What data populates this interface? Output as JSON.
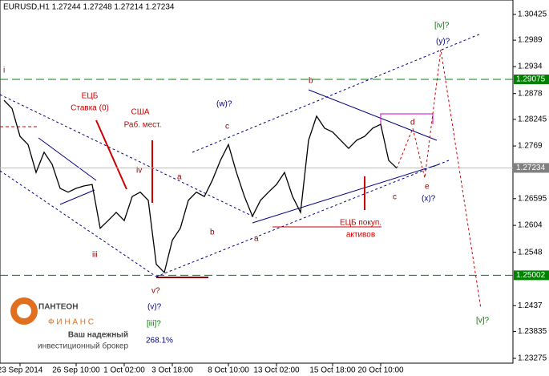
{
  "chart_data": {
    "type": "line",
    "header": "EURUSD,H1  1.27244 1.27248 1.27214 1.27234",
    "categories": [
      null,
      null,
      "23 Sep 2014",
      null,
      null,
      null,
      null,
      null,
      null,
      "26 Sep 10:00",
      null,
      null,
      null,
      null,
      null,
      "1 Oct 02:00",
      null,
      null,
      null,
      null,
      null,
      "3 Oct 18:00",
      null,
      null,
      null,
      null,
      null,
      null,
      "8 Oct 10:00",
      null,
      null,
      null,
      null,
      null,
      "13 Oct 02:00",
      null,
      null,
      null,
      null,
      null,
      null,
      "15 Oct 18:00",
      null,
      null,
      null,
      null,
      null,
      "20 Oct 10:00",
      null,
      null
    ],
    "series": [
      {
        "name": "EURUSD,H1",
        "color": "#000000",
        "values": [
          1.2864,
          1.2847,
          1.2789,
          1.2772,
          1.2714,
          1.2756,
          1.2731,
          1.2681,
          1.2673,
          1.2681,
          1.2686,
          1.2689,
          1.2598,
          1.2614,
          1.2631,
          1.2614,
          1.2664,
          1.2673,
          1.2656,
          1.2523,
          1.2506,
          1.2573,
          1.2598,
          1.2656,
          1.2673,
          1.2664,
          1.2698,
          1.2739,
          1.2772,
          1.2714,
          1.2664,
          1.2623,
          1.2656,
          1.2673,
          1.2689,
          1.2714,
          1.2664,
          1.2631,
          1.2781,
          1.2831,
          1.2806,
          1.2798,
          1.2781,
          1.2764,
          1.2781,
          1.2789,
          1.2806,
          1.2814,
          1.2739,
          1.2723
        ]
      }
    ],
    "ylim": [
      1.23175,
      1.30725
    ],
    "yticks": [
      1.30425,
      1.2989,
      1.2934,
      1.2878,
      1.28245,
      1.2769,
      1.26595,
      1.2604,
      1.2548,
      1.2437,
      1.23835,
      1.23275
    ],
    "price_labels": [
      {
        "value": 1.29075,
        "label": "1.29075",
        "color": "#008000"
      },
      {
        "value": 1.25002,
        "label": "1.25002",
        "color": "#008000"
      },
      {
        "value": 1.27234,
        "label": "1.27234",
        "color": "#808080"
      }
    ],
    "annotations": [
      "i",
      "ЕЦБ",
      "Ставка (0)",
      "США",
      "Раб. мест.",
      "iv",
      "iii",
      "a",
      "(w)?",
      "c",
      "b",
      "a",
      "b",
      "v?",
      "(v)?",
      "[iii]?",
      "268.1%",
      "ЕЦБ покуп.",
      "активов",
      "d",
      "c",
      "e",
      "(x)?",
      "[iv]?",
      "(y)?",
      "[v]?"
    ],
    "logo": {
      "name": "ПАНТЕОН",
      "sub": "Ф И Н А Н С",
      "slogan1": "Ваш надежный",
      "slogan2": "инвестиционный брокер"
    }
  }
}
